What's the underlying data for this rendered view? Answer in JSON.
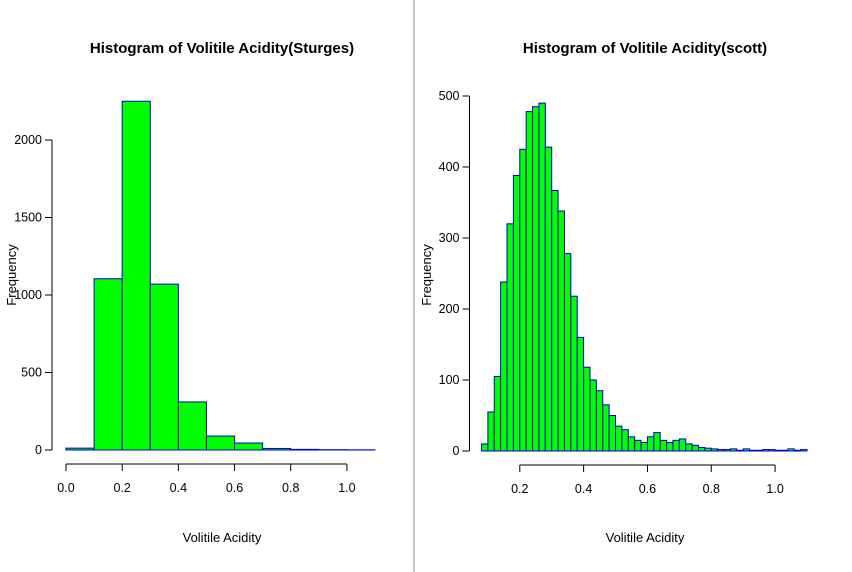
{
  "chart_data": [
    {
      "type": "bar",
      "title": "Histogram of Volitile Acidity(Sturges)",
      "xlabel": "Volitile Acidity",
      "ylabel": "Frequency",
      "xlim": [
        0.0,
        1.1
      ],
      "ylim": [
        0,
        2200
      ],
      "x_ticks": [
        "0.0",
        "0.2",
        "0.4",
        "0.6",
        "0.8",
        "1.0"
      ],
      "y_ticks": [
        "0",
        "500",
        "1000",
        "1500",
        "2000"
      ],
      "bin_width": 0.1,
      "bins": [
        {
          "x0": 0.0,
          "x1": 0.1,
          "value": 12
        },
        {
          "x0": 0.1,
          "x1": 0.2,
          "value": 1105
        },
        {
          "x0": 0.2,
          "x1": 0.3,
          "value": 2250
        },
        {
          "x0": 0.3,
          "x1": 0.4,
          "value": 1070
        },
        {
          "x0": 0.4,
          "x1": 0.5,
          "value": 310
        },
        {
          "x0": 0.5,
          "x1": 0.6,
          "value": 90
        },
        {
          "x0": 0.6,
          "x1": 0.7,
          "value": 45
        },
        {
          "x0": 0.7,
          "x1": 0.8,
          "value": 10
        },
        {
          "x0": 0.8,
          "x1": 0.9,
          "value": 4
        },
        {
          "x0": 0.9,
          "x1": 1.0,
          "value": 2
        },
        {
          "x0": 1.0,
          "x1": 1.1,
          "value": 1
        }
      ],
      "fill_color": "#00ff00",
      "border_color": "#0000cd",
      "grid": false
    },
    {
      "type": "bar",
      "title": "Histogram of Volitile Acidity(scott)",
      "xlabel": "Volitile Acidity",
      "ylabel": "Frequency",
      "xlim": [
        0.08,
        1.1
      ],
      "ylim": [
        0,
        500
      ],
      "x_ticks": [
        "0.2",
        "0.4",
        "0.6",
        "0.8",
        "1.0"
      ],
      "y_ticks": [
        "0",
        "100",
        "200",
        "300",
        "400",
        "500"
      ],
      "bin_width": 0.02,
      "bin_start": 0.08,
      "values": [
        10,
        55,
        105,
        238,
        320,
        388,
        425,
        478,
        485,
        490,
        428,
        367,
        338,
        278,
        218,
        160,
        118,
        100,
        85,
        65,
        50,
        35,
        30,
        20,
        15,
        12,
        20,
        26,
        15,
        12,
        15,
        17,
        10,
        8,
        5,
        4,
        3,
        2,
        2,
        3,
        1,
        3,
        1,
        1,
        2,
        2,
        1,
        1,
        3,
        1,
        2
      ],
      "fill_color": "#00ff00",
      "border_color": "#0000cd",
      "grid": false
    }
  ]
}
